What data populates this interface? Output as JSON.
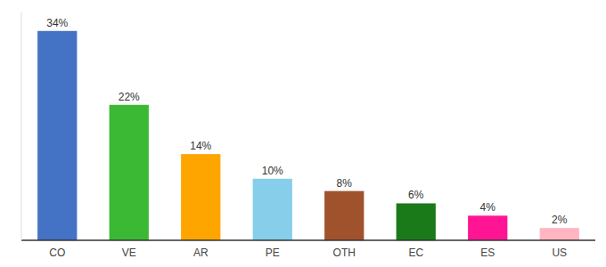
{
  "chart_data": {
    "type": "bar",
    "categories": [
      "CO",
      "VE",
      "AR",
      "PE",
      "OTH",
      "EC",
      "ES",
      "US"
    ],
    "values": [
      34,
      22,
      14,
      10,
      8,
      6,
      4,
      2
    ],
    "value_labels": [
      "34%",
      "22%",
      "14%",
      "10%",
      "8%",
      "6%",
      "4%",
      "2%"
    ],
    "colors": [
      "#4472C4",
      "#3CB934",
      "#FFA500",
      "#87CEEB",
      "#A0522D",
      "#1A7A1A",
      "#FF1493",
      "#FFB6C1"
    ],
    "ylim": [
      0,
      37
    ],
    "data_labels": true,
    "tick_labels": "x"
  }
}
